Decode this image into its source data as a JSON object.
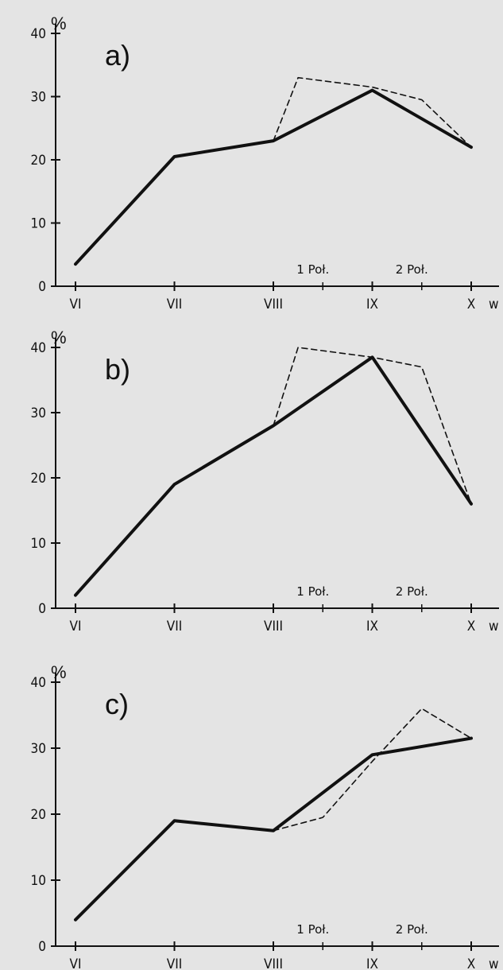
{
  "chart_data": [
    {
      "type": "line",
      "panel_label": "a)",
      "y_unit": "%",
      "x_suffix": "w",
      "categories": [
        "VI",
        "VII",
        "VIII",
        "IX",
        "X"
      ],
      "yticks": [
        0,
        10,
        20,
        30,
        40
      ],
      "ylim": [
        0,
        40
      ],
      "half_labels": [
        "1 Poł.",
        "2 Poł."
      ],
      "series": [
        {
          "style": "solid",
          "x": [
            0,
            1,
            2,
            3,
            4
          ],
          "values": [
            3.5,
            20.5,
            23,
            31,
            22
          ]
        },
        {
          "style": "dashed",
          "x": [
            2,
            2.25,
            3,
            3.5,
            4
          ],
          "values": [
            23,
            33,
            31.5,
            29.5,
            22
          ]
        }
      ]
    },
    {
      "type": "line",
      "panel_label": "b)",
      "y_unit": "%",
      "x_suffix": "w",
      "categories": [
        "VI",
        "VII",
        "VIII",
        "IX",
        "X"
      ],
      "yticks": [
        0,
        10,
        20,
        30,
        40
      ],
      "ylim": [
        0,
        40
      ],
      "half_labels": [
        "1 Poł.",
        "2 Poł."
      ],
      "series": [
        {
          "style": "solid",
          "x": [
            0,
            1,
            2,
            3,
            4
          ],
          "values": [
            2,
            19,
            28,
            38.5,
            16
          ]
        },
        {
          "style": "dashed",
          "x": [
            2,
            2.25,
            3,
            3.5,
            4
          ],
          "values": [
            28,
            40,
            38.5,
            37,
            16
          ]
        }
      ]
    },
    {
      "type": "line",
      "panel_label": "c)",
      "y_unit": "%",
      "x_suffix": "w",
      "categories": [
        "VI",
        "VII",
        "VIII",
        "IX",
        "X"
      ],
      "yticks": [
        0,
        10,
        20,
        30,
        40
      ],
      "ylim": [
        0,
        40
      ],
      "half_labels": [
        "1 Poł.",
        "2 Poł."
      ],
      "series": [
        {
          "style": "solid",
          "x": [
            0,
            1,
            2,
            3,
            4
          ],
          "values": [
            4,
            19,
            17.5,
            29,
            31.5
          ]
        },
        {
          "style": "dashed",
          "x": [
            2,
            2.5,
            3,
            3.5,
            4
          ],
          "values": [
            17.5,
            19.5,
            28,
            36,
            31.5
          ]
        }
      ]
    }
  ]
}
